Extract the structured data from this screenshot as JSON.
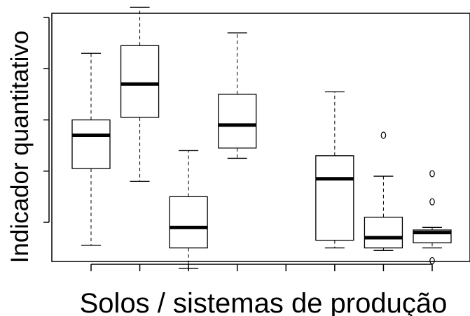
{
  "chart_data": {
    "type": "boxplot",
    "title": "",
    "xlabel": "Solos / sistemas de produção",
    "ylabel": "Indicador quantitativo",
    "ylim": [
      0,
      10
    ],
    "y_ticks": [
      1,
      3,
      5,
      7,
      9
    ],
    "y_tick_labels_shown": false,
    "x_tick_labels_shown": false,
    "x_ticks": [
      1,
      2,
      3,
      4,
      5,
      6,
      7,
      8
    ],
    "boxes": [
      {
        "x": 1,
        "whisker_low": 0.1,
        "q1": 3.1,
        "median": 4.4,
        "q3": 5.0,
        "whisker_high": 7.6,
        "outliers": []
      },
      {
        "x": 2,
        "whisker_low": 2.6,
        "q1": 5.1,
        "median": 6.4,
        "q3": 7.9,
        "whisker_high": 9.4,
        "outliers": []
      },
      {
        "x": 3,
        "whisker_low": -0.8,
        "q1": 0.0,
        "median": 0.8,
        "q3": 2.0,
        "whisker_high": 3.8,
        "outliers": []
      },
      {
        "x": 4,
        "whisker_low": 3.5,
        "q1": 3.9,
        "median": 4.8,
        "q3": 6.0,
        "whisker_high": 8.4,
        "outliers": []
      },
      {
        "x": 6,
        "whisker_low": 0.0,
        "q1": 0.3,
        "median": 2.7,
        "q3": 3.6,
        "whisker_high": 6.1,
        "outliers": []
      },
      {
        "x": 7,
        "whisker_low": -0.1,
        "q1": 0.0,
        "median": 0.4,
        "q3": 1.2,
        "whisker_high": 2.8,
        "outliers": [
          4.4
        ]
      },
      {
        "x": 8,
        "whisker_low": 0.0,
        "q1": 0.2,
        "median": 0.6,
        "q3": 0.7,
        "whisker_high": 0.8,
        "outliers": [
          2.9,
          1.8,
          -0.5
        ]
      }
    ],
    "grid": false,
    "legend": "none"
  }
}
